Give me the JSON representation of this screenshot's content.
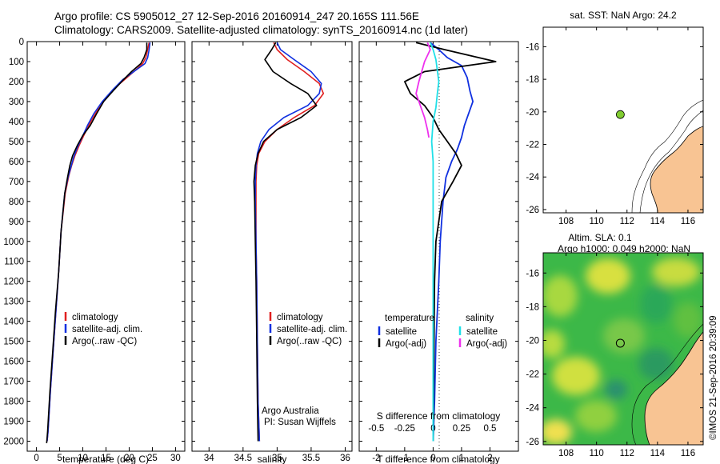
{
  "header": {
    "line1": "Argo profile: CS 5905012_27 12-Sep-2016 20160914_247 20.165S 111.56E",
    "line2": "Climatology: CARS2009. Satellite-adjusted climatology: synTS_20160914.nc (1d later)"
  },
  "chart_data": [
    {
      "type": "line",
      "xlabel": "temperature (deg C)",
      "ylabel": "",
      "xlim": [
        -2,
        32
      ],
      "ylim": [
        2050,
        0
      ],
      "xticks": [
        "0",
        "5",
        "10",
        "15",
        "20",
        "25",
        "30"
      ],
      "yticks": [
        "0",
        "100",
        "200",
        "300",
        "400",
        "500",
        "600",
        "700",
        "800",
        "900",
        "1000",
        "1100",
        "1200",
        "1300",
        "1400",
        "1500",
        "1600",
        "1700",
        "1800",
        "1900",
        "2000"
      ],
      "legend": [
        "climatology",
        "satellite-adj. clim.",
        "Argo(..raw -QC)"
      ],
      "colors": [
        "#e02020",
        "#1030e0",
        "#000000"
      ],
      "series": [
        {
          "name": "climatology",
          "x": [
            24.3,
            24,
            23.6,
            22.9,
            21.5,
            19.5,
            17,
            14.8,
            13,
            11.5,
            10.2,
            9.2,
            8.3,
            7.6,
            7,
            6.2,
            5.3,
            4.8,
            4.2,
            3.6,
            3,
            2.5,
            2.3
          ],
          "y": [
            5,
            40,
            80,
            110,
            140,
            180,
            230,
            290,
            350,
            410,
            470,
            520,
            570,
            620,
            670,
            760,
            950,
            1150,
            1350,
            1550,
            1750,
            1950,
            2000
          ]
        },
        {
          "name": "satellite-adj. clim.",
          "x": [
            24.5,
            24.3,
            24,
            23.4,
            21,
            18.6,
            16.5,
            14.2,
            12.4,
            11,
            9.8,
            8.8,
            8,
            7.4,
            6.8,
            6.1,
            5.3,
            4.8,
            4.2,
            3.6,
            3,
            2.5,
            2.3
          ],
          "y": [
            5,
            40,
            80,
            110,
            150,
            190,
            240,
            300,
            360,
            420,
            480,
            530,
            580,
            630,
            680,
            760,
            950,
            1150,
            1350,
            1550,
            1750,
            1950,
            2000
          ]
        },
        {
          "name": "Argo(..raw -QC)",
          "x": [
            23.8,
            23.8,
            23.2,
            22.5,
            20.5,
            18.8,
            16.8,
            14.5,
            13,
            11.6,
            10,
            8.8,
            7.8,
            7.2,
            6.7,
            6.1,
            5.3,
            4.8,
            4.1,
            3.5,
            2.9,
            2.4,
            2.2
          ],
          "y": [
            5,
            40,
            80,
            110,
            150,
            190,
            240,
            300,
            360,
            420,
            470,
            520,
            570,
            620,
            680,
            760,
            950,
            1150,
            1350,
            1550,
            1750,
            1950,
            2010
          ]
        }
      ]
    },
    {
      "type": "line",
      "xlabel": "salinity",
      "xlim": [
        33.75,
        36.1
      ],
      "ylim": [
        2050,
        0
      ],
      "xticks": [
        "34",
        "34.5",
        "35",
        "35.5",
        "36"
      ],
      "legend": [
        "climatology",
        "satellite-adj. clim.",
        "Argo(..raw -QC)"
      ],
      "colors": [
        "#e02020",
        "#1030e0",
        "#000000"
      ],
      "series": [
        {
          "name": "climatology",
          "x": [
            34.95,
            35.0,
            35.15,
            35.4,
            35.62,
            35.68,
            35.55,
            35.25,
            35.0,
            34.82,
            34.73,
            34.7,
            34.69,
            34.69,
            34.69,
            34.7,
            34.71,
            34.72,
            34.74
          ],
          "y": [
            5,
            40,
            90,
            150,
            210,
            260,
            320,
            380,
            440,
            500,
            560,
            620,
            700,
            800,
            1000,
            1200,
            1500,
            1800,
            2000
          ]
        },
        {
          "name": "satellite-adj. clim.",
          "x": [
            35.0,
            35.05,
            35.25,
            35.5,
            35.65,
            35.62,
            35.45,
            35.1,
            34.88,
            34.76,
            34.71,
            34.69,
            34.68,
            34.68,
            34.69,
            34.7,
            34.71,
            34.72,
            34.74
          ],
          "y": [
            5,
            40,
            90,
            150,
            210,
            260,
            320,
            380,
            440,
            500,
            560,
            620,
            700,
            800,
            1000,
            1200,
            1500,
            1800,
            2000
          ]
        },
        {
          "name": "Argo(..raw -QC)",
          "x": [
            34.98,
            34.92,
            34.82,
            34.94,
            35.2,
            35.45,
            35.58,
            35.35,
            35.0,
            34.8,
            34.72,
            34.68,
            34.66,
            34.67,
            34.68,
            34.69,
            34.7,
            34.71,
            34.72
          ],
          "y": [
            5,
            40,
            90,
            150,
            210,
            260,
            320,
            380,
            440,
            500,
            560,
            620,
            700,
            800,
            1000,
            1200,
            1500,
            1800,
            2000
          ]
        }
      ],
      "annotation": [
        "Argo Australia",
        "PI: Susan Wijffels"
      ]
    },
    {
      "type": "line",
      "title": "",
      "xlabel": "T difference from climatology",
      "x2label": "S difference from climatology",
      "xlim": [
        -2.6,
        3.0
      ],
      "ylim": [
        2050,
        0
      ],
      "xticks": [
        "-2",
        "-1",
        "0",
        "1",
        "2"
      ],
      "x2ticks": [
        "-0.5",
        "-0.25",
        "0",
        "0.25",
        "0.5"
      ],
      "legend_groups": {
        "temperature": [
          "satellite",
          "Argo(-adj)"
        ],
        "salinity": [
          "satellite",
          "Argo(-adj)"
        ]
      },
      "series": [
        {
          "name": "temperature satellite",
          "color": "#1030e0",
          "x": [
            -0.1,
            0.2,
            0.5,
            1.0,
            1.2,
            1.3,
            1.4,
            1.2,
            1.1,
            1.0,
            0.85,
            0.65,
            0.45,
            0.35,
            0.25,
            0.2,
            0.1,
            0.05,
            0.0
          ],
          "y": [
            5,
            40,
            80,
            120,
            180,
            250,
            300,
            380,
            420,
            480,
            540,
            600,
            680,
            800,
            1000,
            1200,
            1500,
            1800,
            2000
          ]
        },
        {
          "name": "temperature Argo(-adj)",
          "color": "#000000",
          "x": [
            -0.6,
            0.4,
            2.2,
            -0.3,
            -1.0,
            -0.8,
            -0.3,
            0.0,
            0.2,
            0.5,
            0.8,
            1.0,
            0.7,
            0.3,
            0.2,
            0.1,
            0.05,
            0.0
          ],
          "y": [
            5,
            40,
            100,
            150,
            200,
            260,
            320,
            380,
            440,
            500,
            560,
            620,
            700,
            800,
            900,
            1000,
            1200,
            2000
          ]
        },
        {
          "name": "salinity satellite",
          "color": "#20e0e8",
          "x": [
            -0.1,
            0.0,
            0.1,
            0.2,
            0.15,
            0.1,
            0.0,
            -0.05,
            0.0,
            0.0,
            0.0,
            0.0,
            0.0
          ],
          "y": [
            5,
            40,
            90,
            200,
            260,
            330,
            400,
            500,
            600,
            800,
            1000,
            1500,
            2000
          ]
        },
        {
          "name": "salinity Argo(-adj)",
          "color": "#ee30ee",
          "x": [
            -0.2,
            -0.1,
            -0.3,
            -0.5,
            -0.6,
            -0.45,
            -0.3,
            -0.2,
            -0.15
          ],
          "y": [
            5,
            40,
            100,
            200,
            260,
            320,
            380,
            440,
            480
          ]
        }
      ]
    },
    {
      "type": "map",
      "title": "sat. SST: NaN Argo: 24.2",
      "xlim": [
        106.5,
        117
      ],
      "ylim": [
        -26.2,
        -14.8
      ],
      "xticks": [
        "108",
        "110",
        "112",
        "114",
        "116"
      ],
      "yticks": [
        "-16",
        "-18",
        "-20",
        "-22",
        "-24",
        "-26"
      ],
      "point": {
        "lon": 111.56,
        "lat": -20.165
      },
      "colors": {
        "land": "#f8c493",
        "point": "#80cc30"
      }
    },
    {
      "type": "heatmap",
      "title_line1": "Altim. SLA: 0.1",
      "title_line2": "Argo h1000: 0.049 h2000: NaN",
      "xlim": [
        106.5,
        117
      ],
      "ylim": [
        -26.2,
        -14.8
      ],
      "xticks": [
        "108",
        "110",
        "112",
        "114",
        "116"
      ],
      "yticks": [
        "-16",
        "-18",
        "-20",
        "-22",
        "-24",
        "-26"
      ],
      "point": {
        "lon": 111.56,
        "lat": -20.165
      },
      "side_text": "©IMOS 21-Sep-2016 20:39:09"
    }
  ]
}
